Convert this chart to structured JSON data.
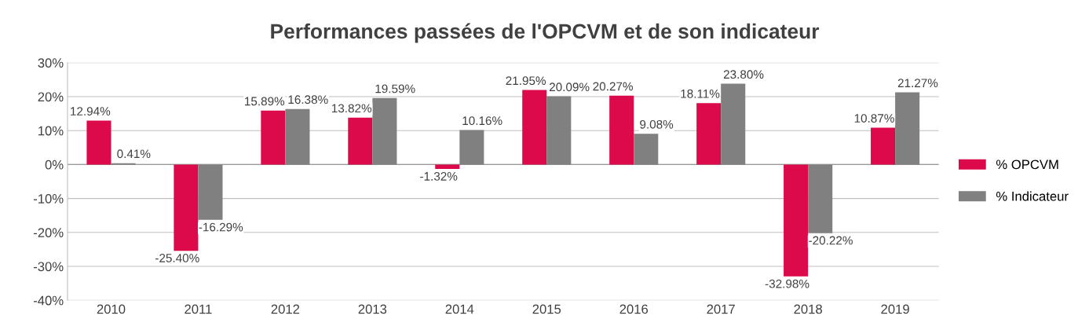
{
  "chart_data": {
    "type": "bar",
    "title": "Performances passées de l'OPCVM et de son indicateur",
    "categories": [
      "2010",
      "2011",
      "2012",
      "2013",
      "2014",
      "2015",
      "2016",
      "2017",
      "2018",
      "2019"
    ],
    "series": [
      {
        "name": "% OPCVM",
        "color": "#dc0a4b",
        "values": [
          12.94,
          -25.4,
          15.89,
          13.82,
          -1.32,
          21.95,
          20.27,
          18.11,
          -32.98,
          10.87
        ],
        "value_labels": [
          "12.94%",
          "-25.40%",
          "15.89%",
          "13.82%",
          "-1.32%",
          "21.95%",
          "20.27%",
          "18.11%",
          "-32.98%",
          "10.87%"
        ]
      },
      {
        "name": "% Indicateur",
        "color": "#808080",
        "values": [
          0.41,
          -16.29,
          16.38,
          19.59,
          10.16,
          20.09,
          9.08,
          23.8,
          -20.22,
          21.27
        ],
        "value_labels": [
          "0.41%",
          "-16.29%",
          "16.38%",
          "19.59%",
          "10.16%",
          "20.09%",
          "9.08%",
          "23.80%",
          "-20.22%",
          "21.27%"
        ]
      }
    ],
    "ylim": [
      -40,
      30
    ],
    "yticks": [
      {
        "value": -40,
        "label": "-40%"
      },
      {
        "value": -30,
        "label": "-30%"
      },
      {
        "value": -20,
        "label": "-20%"
      },
      {
        "value": -10,
        "label": "-10%"
      },
      {
        "value": 0,
        "label": "0%"
      },
      {
        "value": 10,
        "label": "10%"
      },
      {
        "value": 20,
        "label": "20%"
      },
      {
        "value": 30,
        "label": "30%"
      }
    ],
    "grid": "y",
    "legend": "right"
  }
}
